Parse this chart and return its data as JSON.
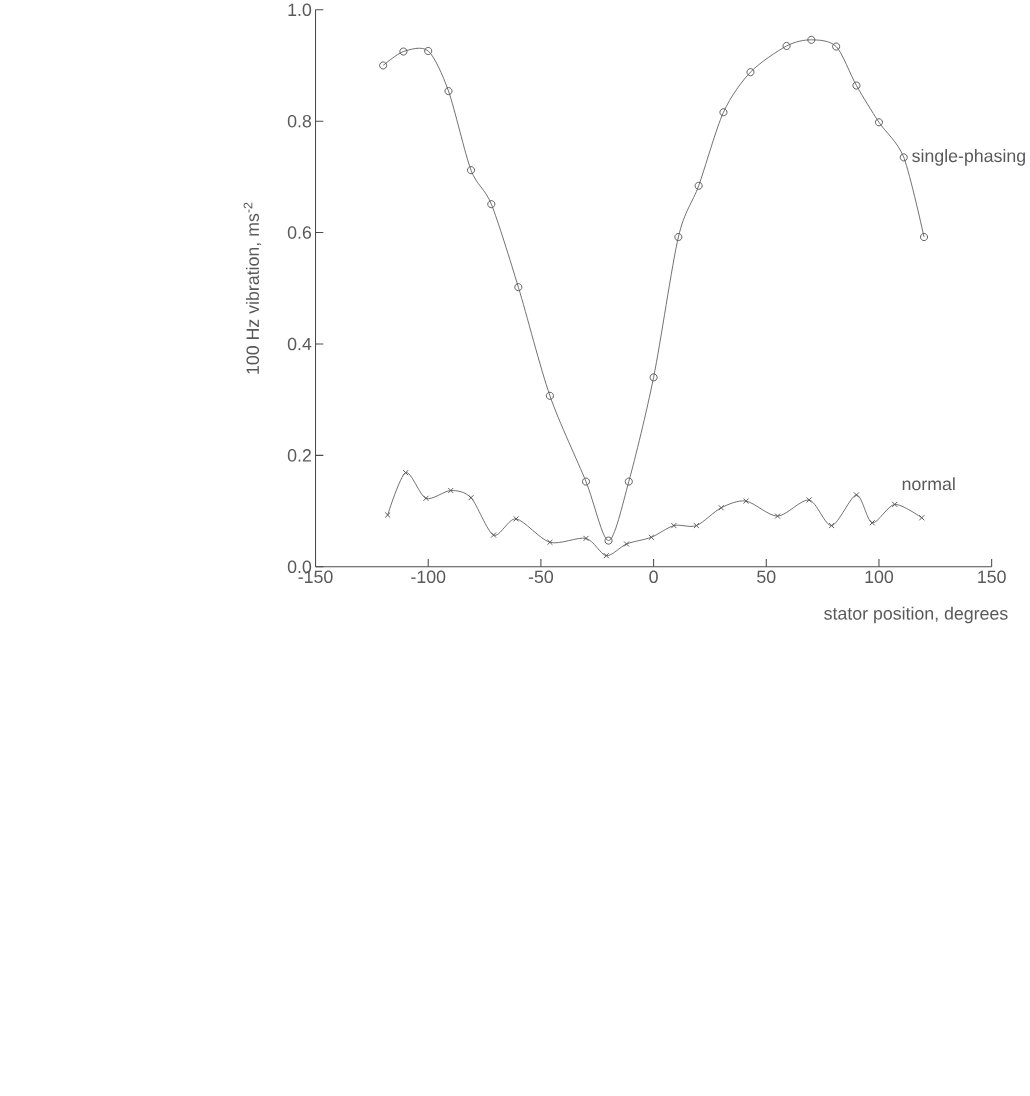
{
  "chart_data": {
    "type": "line",
    "xlabel": "stator position, degrees",
    "ylabel": "100 Hz vibration, ms$^{-2}$",
    "xlim": [
      -150,
      150
    ],
    "ylim": [
      0,
      1
    ],
    "xticks": [
      -150,
      -100,
      -50,
      0,
      50,
      100,
      150
    ],
    "yticks": [
      {
        "value": 0,
        "label": "0.0"
      },
      0.2,
      0.4,
      0.6,
      0.8,
      {
        "value": 1,
        "label": "1.0"
      }
    ],
    "grid": false,
    "legend": false,
    "line_style": "solid",
    "series": [
      {
        "name": "single-phasing",
        "color": "#555555",
        "marker": "circle",
        "x": [
          -120,
          -111,
          -100,
          -91,
          -81,
          -72,
          -60,
          -46,
          -30,
          -20,
          -11,
          0,
          11,
          20,
          31,
          43,
          59,
          70,
          81,
          90,
          100,
          111,
          120
        ],
        "values": [
          0.9,
          0.925,
          0.926,
          0.854,
          0.712,
          0.651,
          0.502,
          0.307,
          0.153,
          0.047,
          0.153,
          0.34,
          0.592,
          0.684,
          0.816,
          0.888,
          0.935,
          0.946,
          0.934,
          0.864,
          0.798,
          0.735,
          0.592
        ]
      },
      {
        "name": "normal",
        "color": "#555555",
        "marker": "cross",
        "x": [
          -118,
          -110,
          -101,
          -90,
          -81,
          -71,
          -61,
          -46,
          -30,
          -21,
          -12,
          -1,
          9,
          19,
          30,
          41,
          55,
          69,
          79,
          90,
          97,
          107,
          119
        ],
        "values": [
          0.093,
          0.169,
          0.123,
          0.137,
          0.124,
          0.057,
          0.086,
          0.044,
          0.051,
          0.02,
          0.041,
          0.053,
          0.074,
          0.074,
          0.106,
          0.118,
          0.091,
          0.12,
          0.074,
          0.129,
          0.079,
          0.112,
          0.088
        ]
      }
    ]
  }
}
